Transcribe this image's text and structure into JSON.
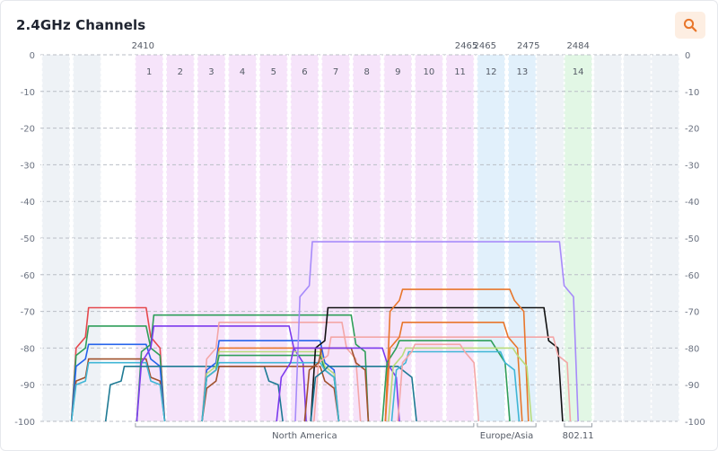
{
  "header": {
    "title": "2.4GHz Channels",
    "zoom_icon": "magnifier-icon"
  },
  "colors": {
    "accent": "#e8762b",
    "zoom_bg": "#fdeee2"
  },
  "chart_data": {
    "type": "line",
    "title": "2.4GHz Channels",
    "ylim": [
      -100,
      0
    ],
    "yticks": [
      0,
      -10,
      -20,
      -30,
      -40,
      -50,
      -60,
      -70,
      -80,
      -90,
      -100
    ],
    "xlim": [
      -2.5,
      18
    ],
    "grid": true,
    "channels": [
      {
        "label": "1",
        "x": 1,
        "band": "na"
      },
      {
        "label": "2",
        "x": 2,
        "band": "na"
      },
      {
        "label": "3",
        "x": 3,
        "band": "na"
      },
      {
        "label": "4",
        "x": 4,
        "band": "na"
      },
      {
        "label": "5",
        "x": 5,
        "band": "na"
      },
      {
        "label": "6",
        "x": 6,
        "band": "na"
      },
      {
        "label": "7",
        "x": 7,
        "band": "na"
      },
      {
        "label": "8",
        "x": 8,
        "band": "na"
      },
      {
        "label": "9",
        "x": 9,
        "band": "na"
      },
      {
        "label": "10",
        "x": 10,
        "band": "na"
      },
      {
        "label": "11",
        "x": 11,
        "band": "na"
      },
      {
        "label": "12",
        "x": 12,
        "band": "eu"
      },
      {
        "label": "13",
        "x": 13,
        "band": "eu"
      },
      {
        "label": "14",
        "x": 14.8,
        "band": "jp"
      }
    ],
    "frequency_marks": [
      {
        "label": "2410",
        "x": 0.8
      },
      {
        "label": "2465",
        "x": 11.2
      },
      {
        "label": "2465",
        "x": 11.8
      },
      {
        "label": "2475",
        "x": 13.2
      },
      {
        "label": "2484",
        "x": 14.8
      }
    ],
    "regions": [
      {
        "label": "North America",
        "x0": 0.5,
        "x1": 11.5
      },
      {
        "label": "Europe/Asia",
        "x0": 11.5,
        "x1": 13.5
      },
      {
        "label": "802.11",
        "x0": 14.3,
        "x1": 15.3
      }
    ],
    "series": [
      {
        "color": "#e5484d",
        "x": [
          -1.5,
          -1.35,
          -1.05,
          -0.95,
          0.9,
          1.05,
          1.35,
          1.5
        ],
        "y": [
          -100,
          -80,
          -77,
          -69,
          -69,
          -77,
          -80,
          -100
        ]
      },
      {
        "color": "#2f9e5a",
        "x": [
          -1.5,
          -1.35,
          -1.05,
          -0.95,
          0.9,
          1.05,
          1.35,
          1.5
        ],
        "y": [
          -100,
          -82,
          -80,
          -74,
          -74,
          -80,
          -82,
          -100
        ]
      },
      {
        "color": "#2563eb",
        "x": [
          -1.5,
          -1.35,
          -1.05,
          -0.95,
          0.9,
          1.05,
          1.35,
          1.5
        ],
        "y": [
          -100,
          -85,
          -83,
          -79,
          -79,
          -83,
          -85,
          -100
        ]
      },
      {
        "color": "#a0522d",
        "x": [
          -1.5,
          -1.35,
          -1.05,
          -0.95,
          0.9,
          1.05,
          1.35,
          1.5
        ],
        "y": [
          -100,
          -89,
          -88,
          -83,
          -83,
          -88,
          -89,
          -100
        ]
      },
      {
        "color": "#3fb6d6",
        "x": [
          -1.5,
          -1.35,
          -1.05,
          -0.95,
          0.9,
          1.05,
          1.35,
          1.5
        ],
        "y": [
          -100,
          -90,
          -89,
          -84,
          -84,
          -89,
          -90,
          -100
        ]
      },
      {
        "color": "#2f9e5a",
        "x": [
          0.6,
          0.75,
          1.05,
          1.15,
          7.5,
          7.65,
          7.95,
          8.05
        ],
        "y": [
          -100,
          -81,
          -79,
          -71,
          -71,
          -79,
          -81,
          -100
        ]
      },
      {
        "color": "#7c3aed",
        "x": [
          0.6,
          0.75,
          1.05,
          1.15,
          5.5,
          5.65,
          5.95,
          6.05
        ],
        "y": [
          -100,
          -84,
          -80,
          -74,
          -74,
          -80,
          -84,
          -100
        ]
      },
      {
        "color": "#1e7a94",
        "x": [
          -0.4,
          -0.25,
          0.1,
          0.2,
          4.7,
          4.85,
          5.15,
          5.3
        ],
        "y": [
          -100,
          -90,
          -89,
          -85,
          -85,
          -89,
          -90,
          -100
        ]
      },
      {
        "color": "#f4a6a6",
        "x": [
          2.7,
          2.85,
          3.15,
          3.25,
          7.2,
          7.35,
          7.65,
          7.8
        ],
        "y": [
          -100,
          -83,
          -80,
          -73,
          -73,
          -80,
          -83,
          -100
        ]
      },
      {
        "color": "#2563eb",
        "x": [
          2.7,
          2.85,
          3.15,
          3.25,
          6.5,
          6.65,
          6.95,
          7.1
        ],
        "y": [
          -100,
          -86,
          -84,
          -78,
          -78,
          -84,
          -86,
          -100
        ]
      },
      {
        "color": "#e8762b",
        "x": [
          2.7,
          2.85,
          3.15,
          3.25,
          6.5,
          6.65,
          6.95,
          7.1
        ],
        "y": [
          -100,
          -88,
          -86,
          -80,
          -80,
          -86,
          -88,
          -100
        ]
      },
      {
        "color": "#b9dc7a",
        "x": [
          2.7,
          2.85,
          3.15,
          3.25,
          6.5,
          6.65,
          6.95,
          7.1
        ],
        "y": [
          -100,
          -87,
          -85,
          -81,
          -81,
          -85,
          -87,
          -100
        ]
      },
      {
        "color": "#2f9e5a",
        "x": [
          2.7,
          2.85,
          3.15,
          3.25,
          6.5,
          6.65,
          6.95,
          7.1
        ],
        "y": [
          -100,
          -88,
          -86,
          -82,
          -82,
          -86,
          -88,
          -100
        ]
      },
      {
        "color": "#a0522d",
        "x": [
          2.7,
          2.85,
          3.15,
          3.25,
          6.5,
          6.65,
          6.95,
          7.1
        ],
        "y": [
          -100,
          -91,
          -89,
          -85,
          -85,
          -89,
          -91,
          -100
        ]
      },
      {
        "color": "#3fb6d6",
        "x": [
          2.7,
          2.85,
          3.15,
          3.25,
          6.5,
          6.65,
          6.95,
          7.1
        ],
        "y": [
          -100,
          -88,
          -86,
          -84,
          -84,
          -86,
          -88,
          -100
        ]
      },
      {
        "color": "#a78bfa",
        "x": [
          5.7,
          5.85,
          6.15,
          6.25,
          14.2,
          14.35,
          14.65,
          14.8
        ],
        "y": [
          -100,
          -66,
          -63,
          -51,
          -51,
          -63,
          -66,
          -100
        ]
      },
      {
        "color": "#111111",
        "x": [
          6.2,
          6.35,
          6.65,
          6.75,
          13.7,
          13.85,
          14.15,
          14.3
        ],
        "y": [
          -100,
          -80,
          -78,
          -69,
          -69,
          -78,
          -80,
          -100
        ]
      },
      {
        "color": "#f4a6a6",
        "x": [
          6.3,
          6.45,
          6.75,
          6.85,
          14.0,
          14.15,
          14.45,
          14.55
        ],
        "y": [
          -100,
          -84,
          -82,
          -77,
          -77,
          -82,
          -84,
          -100
        ]
      },
      {
        "color": "#e8762b",
        "x": [
          8.6,
          8.75,
          9.05,
          9.15,
          12.6,
          12.75,
          13.05,
          13.2
        ],
        "y": [
          -100,
          -70,
          -67,
          -64,
          -64,
          -67,
          -70,
          -100
        ]
      },
      {
        "color": "#a0522d",
        "x": [
          6.0,
          6.15,
          6.45,
          6.55,
          7.5,
          7.65,
          7.95,
          8.05
        ],
        "y": [
          -100,
          -86,
          -84,
          -80,
          -80,
          -84,
          -86,
          -100
        ]
      },
      {
        "color": "#7c3aed",
        "x": [
          5.1,
          5.25,
          5.55,
          5.65,
          8.5,
          8.65,
          8.95,
          9.05
        ],
        "y": [
          -100,
          -88,
          -84,
          -80,
          -80,
          -84,
          -88,
          -100
        ]
      },
      {
        "color": "#1e7a94",
        "x": [
          6.2,
          6.35,
          6.65,
          6.75,
          9.0,
          9.15,
          9.45,
          9.6
        ],
        "y": [
          -100,
          -88,
          -86,
          -85,
          -85,
          -86,
          -88,
          -100
        ]
      },
      {
        "color": "#2f9e5a",
        "x": [
          8.5,
          8.65,
          8.95,
          9.05,
          12.0,
          12.15,
          12.45,
          12.6
        ],
        "y": [
          -100,
          -84,
          -80,
          -78,
          -78,
          -80,
          -84,
          -100
        ]
      },
      {
        "color": "#e8762b",
        "x": [
          8.6,
          8.75,
          9.05,
          9.15,
          12.4,
          12.55,
          12.85,
          13.0
        ],
        "y": [
          -100,
          -80,
          -77,
          -73,
          -73,
          -77,
          -80,
          -100
        ]
      },
      {
        "color": "#b9dc7a",
        "x": [
          8.7,
          8.85,
          9.15,
          9.25,
          12.7,
          12.85,
          13.15,
          13.3
        ],
        "y": [
          -100,
          -85,
          -82,
          -80,
          -80,
          -82,
          -85,
          -100
        ]
      },
      {
        "color": "#3fb6d6",
        "x": [
          8.8,
          8.95,
          9.25,
          9.35,
          12.3,
          12.45,
          12.75,
          12.9
        ],
        "y": [
          -100,
          -86,
          -84,
          -81,
          -81,
          -84,
          -86,
          -100
        ]
      },
      {
        "color": "#f4a6a6",
        "x": [
          9.0,
          9.15,
          9.45,
          9.55,
          11.0,
          11.15,
          11.45,
          11.6
        ],
        "y": [
          -100,
          -84,
          -81,
          -79,
          -79,
          -81,
          -84,
          -100
        ]
      }
    ]
  }
}
